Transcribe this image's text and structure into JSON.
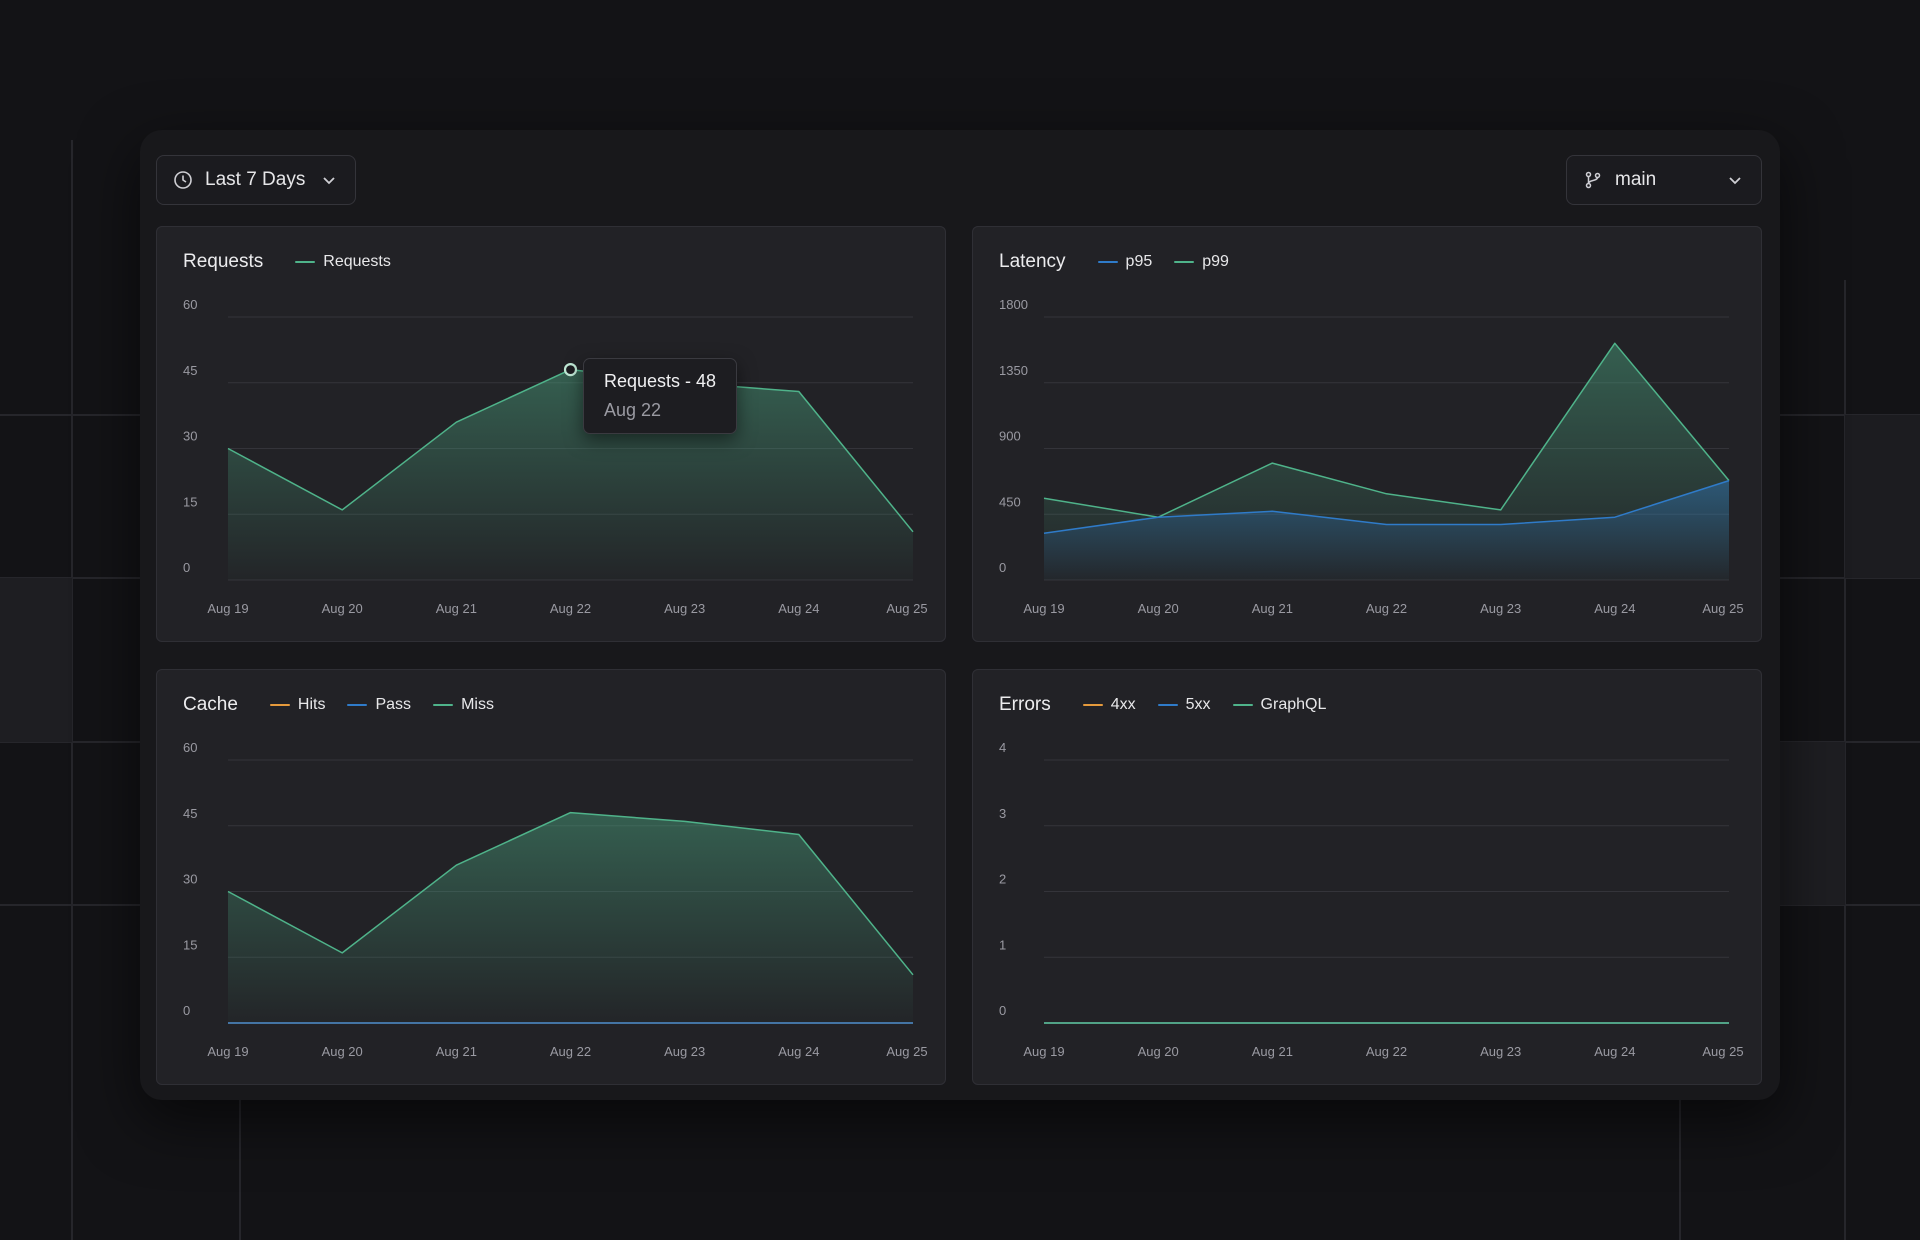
{
  "toolbar": {
    "time_range": {
      "label": "Last 7 Days",
      "icon": "clock-icon"
    },
    "branch": {
      "label": "main",
      "icon": "git-branch-icon"
    }
  },
  "colors": {
    "green": "#4fb38a",
    "blue": "#2f7bc9",
    "orange": "#e59a3c"
  },
  "tooltip": {
    "title": "Requests - 48",
    "subtitle": "Aug 22"
  },
  "chart_data": [
    {
      "id": "requests",
      "type": "area",
      "title": "Requests",
      "categories": [
        "Aug 19",
        "Aug 20",
        "Aug 21",
        "Aug 22",
        "Aug 23",
        "Aug 24",
        "Aug 25"
      ],
      "yticks": [
        "0",
        "15",
        "30",
        "45",
        "60"
      ],
      "ylim": [
        0,
        60
      ],
      "grid": true,
      "legend": [
        {
          "name": "Requests",
          "color": "#4fb38a"
        }
      ],
      "series": [
        {
          "name": "Requests",
          "color": "#4fb38a",
          "fill": true,
          "values": [
            30,
            16,
            36,
            48,
            45,
            43,
            11
          ]
        }
      ]
    },
    {
      "id": "latency",
      "type": "area",
      "title": "Latency",
      "categories": [
        "Aug 19",
        "Aug 20",
        "Aug 21",
        "Aug 22",
        "Aug 23",
        "Aug 24",
        "Aug 25"
      ],
      "yticks": [
        "0",
        "450",
        "900",
        "1350",
        "1800"
      ],
      "ylim": [
        0,
        1800
      ],
      "grid": true,
      "legend": [
        {
          "name": "p95",
          "color": "#2f7bc9"
        },
        {
          "name": "p99",
          "color": "#4fb38a"
        }
      ],
      "series": [
        {
          "name": "p99",
          "color": "#4fb38a",
          "fill": true,
          "values": [
            560,
            430,
            800,
            590,
            480,
            1620,
            680
          ]
        },
        {
          "name": "p95",
          "color": "#2f7bc9",
          "fill": true,
          "values": [
            320,
            430,
            470,
            380,
            380,
            430,
            680
          ]
        }
      ]
    },
    {
      "id": "cache",
      "type": "area",
      "title": "Cache",
      "categories": [
        "Aug 19",
        "Aug 20",
        "Aug 21",
        "Aug 22",
        "Aug 23",
        "Aug 24",
        "Aug 25"
      ],
      "yticks": [
        "0",
        "15",
        "30",
        "45",
        "60"
      ],
      "ylim": [
        0,
        60
      ],
      "grid": true,
      "legend": [
        {
          "name": "Hits",
          "color": "#e59a3c"
        },
        {
          "name": "Pass",
          "color": "#2f7bc9"
        },
        {
          "name": "Miss",
          "color": "#4fb38a"
        }
      ],
      "series": [
        {
          "name": "Miss",
          "color": "#4fb38a",
          "fill": true,
          "values": [
            30,
            16,
            36,
            48,
            46,
            43,
            11
          ]
        },
        {
          "name": "Hits",
          "color": "#e59a3c",
          "fill": false,
          "values": [
            0,
            0,
            0,
            0,
            0,
            0,
            0
          ]
        },
        {
          "name": "Pass",
          "color": "#2f7bc9",
          "fill": false,
          "values": [
            0,
            0,
            0,
            0,
            0,
            0,
            0
          ]
        }
      ]
    },
    {
      "id": "errors",
      "type": "line",
      "title": "Errors",
      "categories": [
        "Aug 19",
        "Aug 20",
        "Aug 21",
        "Aug 22",
        "Aug 23",
        "Aug 24",
        "Aug 25"
      ],
      "yticks": [
        "0",
        "1",
        "2",
        "3",
        "4"
      ],
      "ylim": [
        0,
        4
      ],
      "grid": true,
      "legend": [
        {
          "name": "4xx",
          "color": "#e59a3c"
        },
        {
          "name": "5xx",
          "color": "#2f7bc9"
        },
        {
          "name": "GraphQL",
          "color": "#4fb38a"
        }
      ],
      "series": [
        {
          "name": "4xx",
          "color": "#e59a3c",
          "fill": false,
          "values": [
            0,
            0,
            0,
            0,
            0,
            0,
            0
          ]
        },
        {
          "name": "5xx",
          "color": "#2f7bc9",
          "fill": false,
          "values": [
            0,
            0,
            0,
            0,
            0,
            0,
            0
          ]
        },
        {
          "name": "GraphQL",
          "color": "#4fb38a",
          "fill": false,
          "values": [
            0,
            0,
            0,
            0,
            0,
            0,
            0
          ]
        }
      ]
    }
  ]
}
